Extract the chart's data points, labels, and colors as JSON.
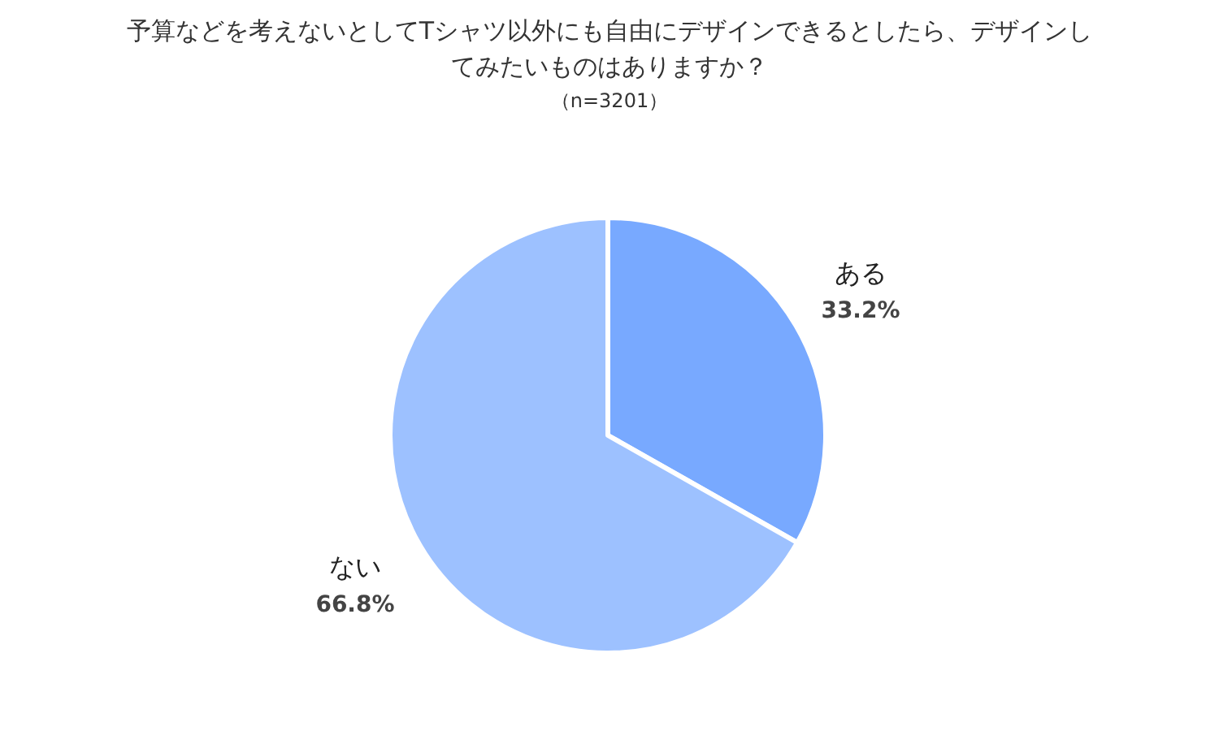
{
  "chart_data": {
    "type": "pie",
    "title": "予算などを考えないとしてTシャツ以外にも自由にデザインできるとしたら、デザインしてみたいものはありますか？",
    "subtitle": "（n=3201）",
    "categories": [
      "ある",
      "ない"
    ],
    "values": [
      33.2,
      66.8
    ],
    "value_labels": [
      "33.2%",
      "66.8%"
    ],
    "colors": [
      "#78a9ff",
      "#9dc1ff"
    ]
  }
}
